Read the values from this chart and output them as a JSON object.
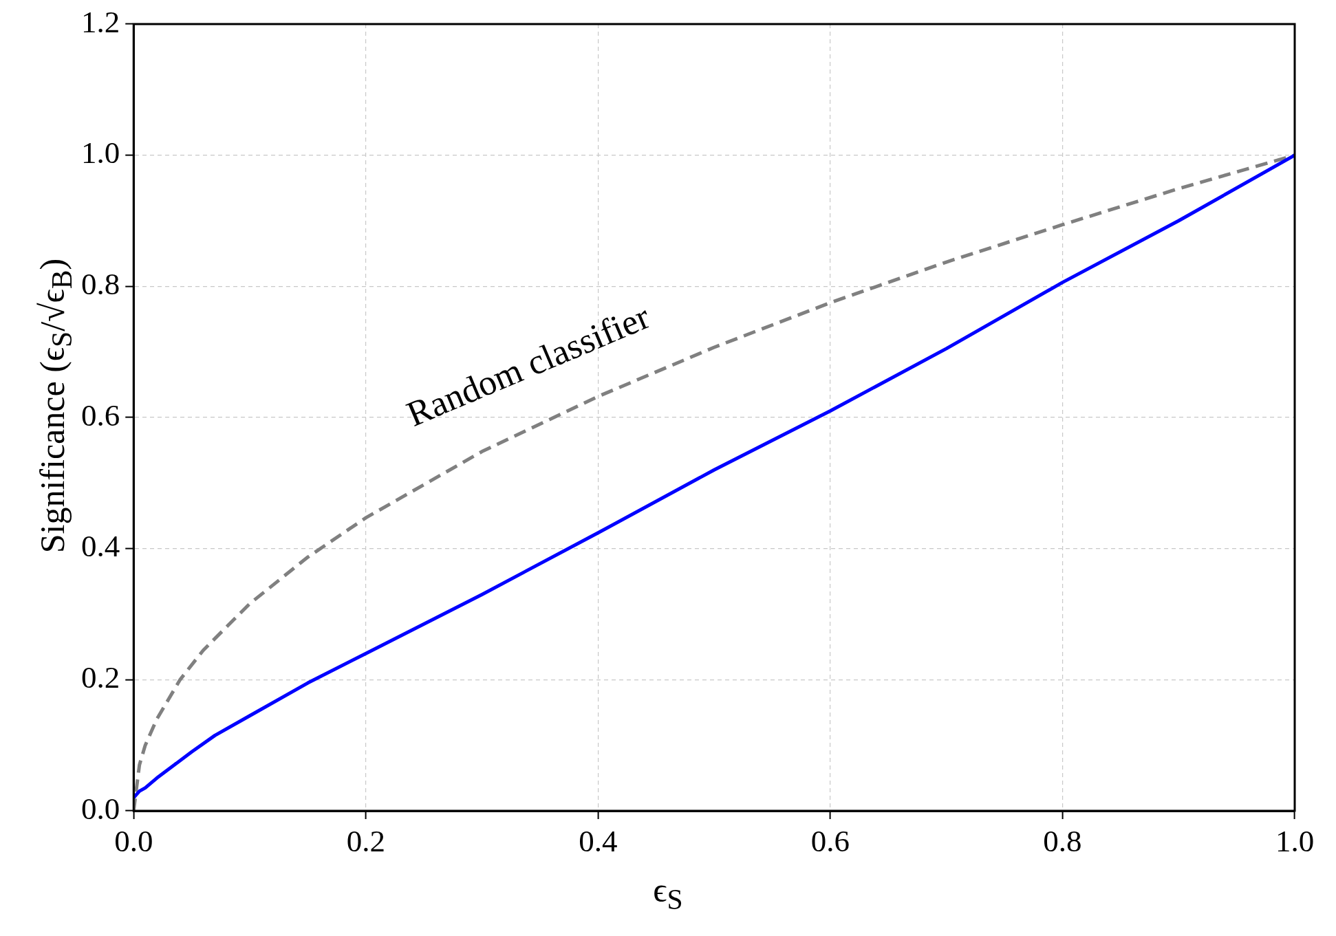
{
  "chart_data": {
    "type": "line",
    "xlabel": "ϵ$_{S}$",
    "ylabel": "Significance (ϵ$_{S}$/√ϵ$_{B}$)",
    "xlim": [
      0,
      1
    ],
    "ylim": [
      0,
      1.2
    ],
    "xticks": [
      {
        "value": 0,
        "label": "0.0"
      },
      0.2,
      0.4,
      0.6,
      0.8,
      {
        "value": 1,
        "label": "1.0"
      }
    ],
    "yticks": [
      {
        "value": 0,
        "label": "0.0"
      },
      0.2,
      0.4,
      0.6,
      0.8,
      {
        "value": 1,
        "label": "1.0"
      },
      1.2
    ],
    "grid": true,
    "marker": "none",
    "series": [
      {
        "color": "#0000ff",
        "line_style": "solid",
        "x": [
          0,
          0.005,
          0.01,
          0.02,
          0.035,
          0.05,
          0.07,
          0.1,
          0.15,
          0.2,
          0.3,
          0.4,
          0.5,
          0.6,
          0.7,
          0.8,
          0.9,
          1
        ],
        "values": [
          0.02,
          0.03,
          0.035,
          0.05,
          0.07,
          0.09,
          0.115,
          0.145,
          0.195,
          0.24,
          0.33,
          0.424,
          0.52,
          0.61,
          0.705,
          0.806,
          0.9,
          1
        ]
      },
      {
        "name": "Random classifier",
        "color": "#808080",
        "line_style": "dashed",
        "x": [
          0,
          0.005,
          0.01,
          0.02,
          0.04,
          0.06,
          0.1,
          0.15,
          0.2,
          0.3,
          0.4,
          0.5,
          0.6,
          0.7,
          0.8,
          0.9,
          1
        ],
        "values": [
          0,
          0.07,
          0.1,
          0.14,
          0.2,
          0.245,
          0.316,
          0.387,
          0.447,
          0.548,
          0.632,
          0.707,
          0.775,
          0.837,
          0.894,
          0.949,
          1
        ]
      }
    ]
  }
}
